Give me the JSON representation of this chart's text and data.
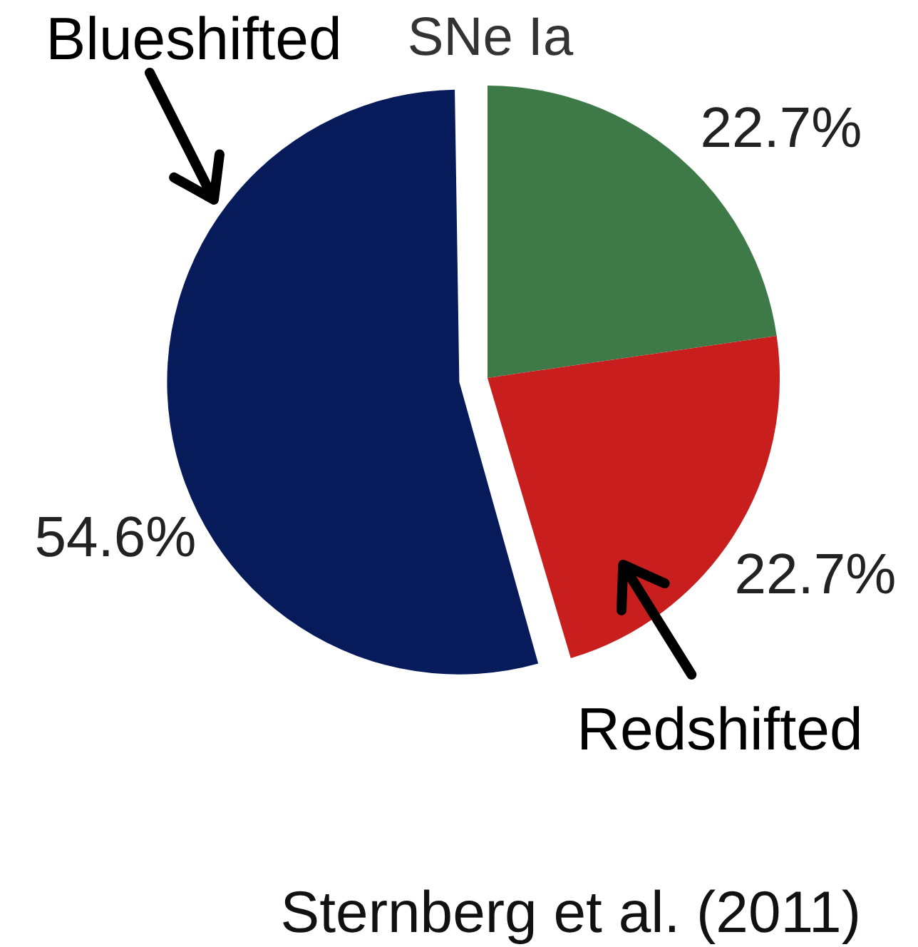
{
  "chart_data": {
    "type": "pie",
    "title": "SNe Ia",
    "categories": [
      null,
      "Redshifted",
      "Blueshifted"
    ],
    "values": [
      22.7,
      22.7,
      54.6
    ],
    "colors": [
      "#3d7a48",
      "#c81e1e",
      "#071a5a"
    ],
    "value_labels": [
      "22.7%",
      "22.7%",
      "54.6%"
    ],
    "annotations": [
      "Sternberg et al. (2011)"
    ]
  }
}
